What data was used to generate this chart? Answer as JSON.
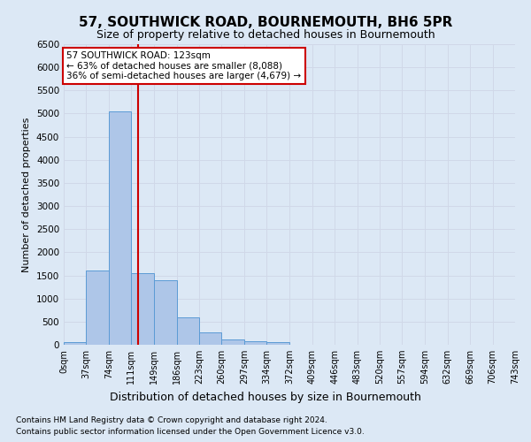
{
  "title": "57, SOUTHWICK ROAD, BOURNEMOUTH, BH6 5PR",
  "subtitle": "Size of property relative to detached houses in Bournemouth",
  "xlabel": "Distribution of detached houses by size in Bournemouth",
  "ylabel": "Number of detached properties",
  "footnote1": "Contains HM Land Registry data © Crown copyright and database right 2024.",
  "footnote2": "Contains public sector information licensed under the Open Government Licence v3.0.",
  "bar_edges": [
    0,
    37,
    74,
    111,
    149,
    186,
    223,
    260,
    297,
    334,
    372,
    409,
    446,
    483,
    520,
    557,
    594,
    632,
    669,
    706,
    743
  ],
  "bar_labels": [
    "0sqm",
    "37sqm",
    "74sqm",
    "111sqm",
    "149sqm",
    "186sqm",
    "223sqm",
    "260sqm",
    "297sqm",
    "334sqm",
    "372sqm",
    "409sqm",
    "446sqm",
    "483sqm",
    "520sqm",
    "557sqm",
    "594sqm",
    "632sqm",
    "669sqm",
    "706sqm",
    "743sqm"
  ],
  "bar_heights": [
    50,
    1600,
    5050,
    1550,
    1400,
    600,
    270,
    120,
    80,
    60,
    0,
    0,
    0,
    0,
    0,
    0,
    0,
    0,
    0,
    0
  ],
  "bar_color": "#aec6e8",
  "bar_edge_color": "#5b9bd5",
  "property_line_x": 123,
  "property_line_color": "#cc0000",
  "annotation_title": "57 SOUTHWICK ROAD: 123sqm",
  "annotation_line1": "← 63% of detached houses are smaller (8,088)",
  "annotation_line2": "36% of semi-detached houses are larger (4,679) →",
  "annotation_box_color": "#ffffff",
  "annotation_box_edge_color": "#cc0000",
  "ylim": [
    0,
    6500
  ],
  "yticks": [
    0,
    500,
    1000,
    1500,
    2000,
    2500,
    3000,
    3500,
    4000,
    4500,
    5000,
    5500,
    6000,
    6500
  ],
  "grid_color": "#d0d8e8",
  "background_color": "#dce8f5"
}
